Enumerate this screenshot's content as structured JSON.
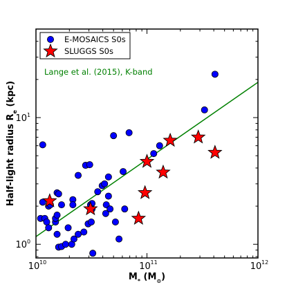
{
  "chart_data": {
    "type": "scatter",
    "xscale": "log",
    "yscale": "log",
    "xlim": [
      10000000000.0,
      1000000000000.0
    ],
    "ylim": [
      0.78,
      50
    ],
    "xlabel": {
      "main": "M",
      "sub": "*",
      "unit_open": " (M",
      "unit_sub": "⊙",
      "unit_close": ")"
    },
    "ylabel": {
      "main": "Half-light radius R",
      "sub": "e",
      "unit": " (kpc)"
    },
    "xticks": [
      {
        "value": 10000000000.0,
        "base": "10",
        "exp": "10"
      },
      {
        "value": 100000000000.0,
        "base": "10",
        "exp": "11"
      },
      {
        "value": 1000000000000.0,
        "base": "10",
        "exp": "12"
      }
    ],
    "yticks": [
      {
        "value": 1,
        "base": "10",
        "exp": "0"
      },
      {
        "value": 10,
        "base": "10",
        "exp": "1"
      }
    ],
    "grid": false,
    "legend": {
      "position": "top-left",
      "entries": [
        {
          "label": "E-MOSAICS S0s",
          "marker": "circle",
          "color": "#0000ff"
        },
        {
          "label": "SLUGGS S0s",
          "marker": "star",
          "color": "#ff0000"
        }
      ]
    },
    "fit_line": {
      "label": "Lange et al. (2015), K-band",
      "color": "#008000",
      "x": [
        10000000000.0,
        1000000000000.0
      ],
      "y": [
        1.15,
        19.0
      ]
    },
    "series": [
      {
        "name": "E-MOSAICS S0s",
        "marker": "circle",
        "color": "#0000ff",
        "points": [
          [
            11500000000.0,
            6.1
          ],
          [
            11000000000.0,
            1.6
          ],
          [
            11500000000.0,
            2.15
          ],
          [
            12000000000.0,
            1.6
          ],
          [
            12500000000.0,
            1.5
          ],
          [
            13000000000.0,
            2.0
          ],
          [
            13000000000.0,
            1.35
          ],
          [
            13500000000.0,
            2.05
          ],
          [
            15000000000.0,
            1.5
          ],
          [
            15000000000.0,
            1.6
          ],
          [
            15500000000.0,
            1.2
          ],
          [
            15500000000.0,
            1.7
          ],
          [
            15500000000.0,
            2.55
          ],
          [
            16000000000.0,
            0.95
          ],
          [
            16000000000.0,
            2.5
          ],
          [
            17000000000.0,
            0.96
          ],
          [
            17000000000.0,
            2.05
          ],
          [
            18500000000.0,
            1.0
          ],
          [
            19500000000.0,
            1.35
          ],
          [
            21000000000.0,
            1.0
          ],
          [
            21500000000.0,
            2.25
          ],
          [
            21500000000.0,
            2.05
          ],
          [
            22000000000.0,
            1.1
          ],
          [
            24000000000.0,
            1.2
          ],
          [
            24000000000.0,
            3.5
          ],
          [
            27000000000.0,
            1.25
          ],
          [
            28000000000.0,
            4.2
          ],
          [
            29500000000.0,
            1.45
          ],
          [
            30500000000.0,
            4.25
          ],
          [
            31000000000.0,
            2.05
          ],
          [
            31500000000.0,
            1.5
          ],
          [
            32000000000.0,
            2.1
          ],
          [
            32000000000.0,
            1.9
          ],
          [
            32500000000.0,
            0.85
          ],
          [
            36000000000.0,
            2.6
          ],
          [
            39500000000.0,
            2.9
          ],
          [
            41500000000.0,
            3.0
          ],
          [
            42500000000.0,
            1.75
          ],
          [
            43000000000.0,
            2.05
          ],
          [
            45000000000.0,
            2.4
          ],
          [
            45000000000.0,
            3.4
          ],
          [
            46500000000.0,
            1.9
          ],
          [
            50000000000.0,
            7.2
          ],
          [
            52000000000.0,
            1.5
          ],
          [
            56000000000.0,
            1.1
          ],
          [
            61000000000.0,
            3.75
          ],
          [
            63000000000.0,
            1.9
          ],
          [
            69000000000.0,
            7.6
          ],
          [
            115000000000.0,
            5.2
          ],
          [
            130000000000.0,
            6.0
          ],
          [
            330000000000.0,
            11.5
          ],
          [
            410000000000.0,
            22.0
          ]
        ]
      },
      {
        "name": "SLUGGS S0s",
        "marker": "star",
        "color": "#ff0000",
        "points": [
          [
            13300000000.0,
            2.2
          ],
          [
            31000000000.0,
            1.9
          ],
          [
            84000000000.0,
            1.6
          ],
          [
            96000000000.0,
            2.55
          ],
          [
            100000000000.0,
            4.5
          ],
          [
            140000000000.0,
            3.7
          ],
          [
            162000000000.0,
            6.6
          ],
          [
            290000000000.0,
            7.0
          ],
          [
            410000000000.0,
            5.3
          ]
        ]
      }
    ]
  }
}
